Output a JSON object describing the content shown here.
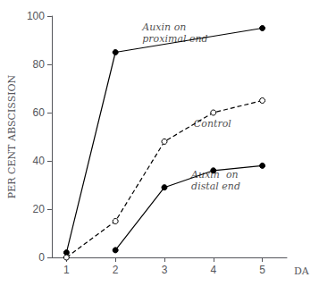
{
  "chart_data": {
    "type": "line",
    "ylabel": "PER CENT ABSCISSION",
    "xlabel": "DA",
    "series": [
      {
        "x": [
          1,
          2,
          5
        ],
        "values": [
          2,
          85,
          95
        ],
        "color": "black",
        "marker": "filled circle",
        "line_style": "solid"
      },
      {
        "x": [
          1,
          2,
          3,
          4,
          5
        ],
        "values": [
          0,
          15,
          48,
          60,
          65
        ],
        "color": "black",
        "marker": "open circle",
        "line_style": "dashed"
      },
      {
        "x": [
          2,
          3,
          4,
          5
        ],
        "values": [
          3,
          29,
          36,
          38
        ],
        "color": "black",
        "marker": "filled circle",
        "line_style": "solid"
      }
    ],
    "annotations": [
      {
        "text": "Auxin on\nproximal end",
        "x": 2.55,
        "y": 88
      },
      {
        "text": "Control",
        "x": 3.6,
        "y": 53
      },
      {
        "text": "Auxin  on\ndistal end",
        "x": 3.55,
        "y": 27
      }
    ],
    "xlim": [
      0.7,
      5.5
    ],
    "xticks": [
      1,
      2,
      3,
      4,
      5
    ],
    "ylim": [
      0,
      100
    ],
    "yticks": [
      0,
      20,
      40,
      60,
      80,
      100
    ],
    "grid": false
  }
}
